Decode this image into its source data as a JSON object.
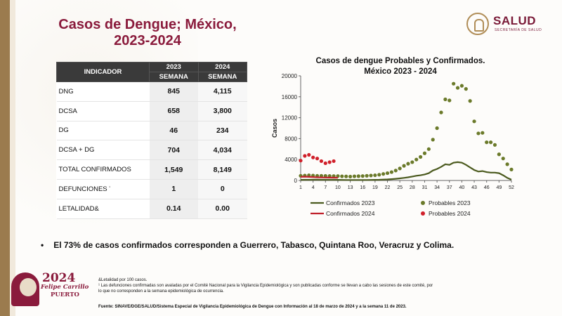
{
  "slide": {
    "title_line1": "Casos de Dengue; México,",
    "title_line2": "2023-2024",
    "logo_word": "SALUD",
    "logo_sub": "SECRETARÍA DE SALUD"
  },
  "table": {
    "header_indicator": "INDICADOR",
    "header_2023": "2023",
    "header_2024": "2024",
    "header_semana_a": "SEMANA",
    "header_semana_b": "SEMANA",
    "rows": [
      {
        "label": "DNG",
        "v2023": "845",
        "v2024": "4,115"
      },
      {
        "label": "DCSA",
        "v2023": "658",
        "v2024": "3,800"
      },
      {
        "label": "DG",
        "v2023": "46",
        "v2024": "234"
      },
      {
        "label": "DCSA + DG",
        "v2023": "704",
        "v2024": "4,034"
      },
      {
        "label": "TOTAL CONFIRMADOS",
        "v2023": "1,549",
        "v2024": "8,149"
      },
      {
        "label": "DEFUNCIONES",
        "note": "¹",
        "v2023": "1",
        "v2024": "0"
      },
      {
        "label": "LETALIDAD&",
        "v2023": "0.14",
        "v2024": "0.00"
      }
    ]
  },
  "chart_data": {
    "type": "line",
    "title_line1": "Casos de dengue Probables y Confirmados.",
    "title_line2": "México 2023 - 2024",
    "ylabel": "Casos",
    "ylim": [
      0,
      20000
    ],
    "yticks": [
      0,
      4000,
      8000,
      12000,
      16000,
      20000
    ],
    "xticks": [
      1,
      4,
      7,
      10,
      13,
      16,
      19,
      22,
      25,
      28,
      31,
      34,
      37,
      40,
      43,
      46,
      49,
      52
    ],
    "colors": {
      "confirmados_2023": "#4b5a1e",
      "probables_2023": "#6b7a2a",
      "confirmados_2024": "#c0202a",
      "probables_2024": "#d0202a"
    },
    "series": [
      {
        "name": "Confirmados 2023",
        "kind": "line",
        "x": [
          1,
          2,
          3,
          4,
          5,
          6,
          7,
          8,
          9,
          10,
          11,
          12,
          13,
          14,
          15,
          16,
          17,
          18,
          19,
          20,
          21,
          22,
          23,
          24,
          25,
          26,
          27,
          28,
          29,
          30,
          31,
          32,
          33,
          34,
          35,
          36,
          37,
          38,
          39,
          40,
          41,
          42,
          43,
          44,
          45,
          46,
          47,
          48,
          49,
          50,
          51,
          52
        ],
        "y": [
          120,
          130,
          140,
          150,
          145,
          140,
          135,
          130,
          128,
          120,
          110,
          100,
          95,
          90,
          90,
          95,
          100,
          110,
          120,
          140,
          170,
          200,
          250,
          320,
          400,
          500,
          600,
          750,
          900,
          1000,
          1150,
          1400,
          1900,
          2200,
          2600,
          3100,
          3000,
          3400,
          3500,
          3400,
          3000,
          2500,
          2000,
          1700,
          1800,
          1600,
          1500,
          1500,
          1400,
          1000,
          500,
          150
        ]
      },
      {
        "name": "Probables 2023",
        "kind": "markers",
        "x": [
          1,
          2,
          3,
          4,
          5,
          6,
          7,
          8,
          9,
          10,
          11,
          12,
          13,
          14,
          15,
          16,
          17,
          18,
          19,
          20,
          21,
          22,
          23,
          24,
          25,
          26,
          27,
          28,
          29,
          30,
          31,
          32,
          33,
          34,
          35,
          36,
          37,
          38,
          39,
          40,
          41,
          42,
          43,
          44,
          45,
          46,
          47,
          48,
          49,
          50,
          51,
          52
        ],
        "y": [
          900,
          950,
          1000,
          950,
          900,
          900,
          880,
          860,
          850,
          850,
          800,
          780,
          750,
          800,
          820,
          850,
          900,
          950,
          1000,
          1100,
          1250,
          1400,
          1600,
          1900,
          2300,
          2800,
          3200,
          3500,
          4000,
          4500,
          5200,
          6000,
          7800,
          10000,
          13000,
          15500,
          15300,
          18500,
          17700,
          18100,
          17500,
          15200,
          11300,
          9000,
          9100,
          7300,
          7300,
          6800,
          5000,
          4200,
          3100,
          2100
        ]
      },
      {
        "name": "Confirmados 2024",
        "kind": "line",
        "x": [
          1,
          2,
          3,
          4,
          5,
          6,
          7,
          8,
          9,
          10
        ],
        "y": [
          700,
          720,
          680,
          650,
          600,
          580,
          560,
          550,
          540,
          530
        ]
      },
      {
        "name": "Probables 2024",
        "kind": "markers",
        "x": [
          1,
          2,
          3,
          4,
          5,
          6,
          7,
          8,
          9
        ],
        "y": [
          3800,
          4700,
          4900,
          4400,
          4200,
          3700,
          3300,
          3500,
          3700
        ]
      }
    ],
    "legend": "bottom"
  },
  "bullet": "El 73% de casos confirmados corresponden a Guerrero, Tabasco, Quintana Roo, Veracruz y Colima.",
  "footnotes": {
    "line1": "&Letalidad por 100 casos.",
    "line2": "¹ Las defunciones confirmadas son avaladas por el Comité Nacional para la Vigilancia Epidemiológica y son publicadas conforme se llevan a cabo las sesiones de este comité, por",
    "line3": "lo que no corresponden a la semana epidemiológica de ocurrencia.",
    "source": "Fuente: SINAVE/DGE/SALUD/Sistema Especial de Vigilancia Epidemiológica de Dengue con Información al 18 de marzo de 2024 y a la semana 11 de 2023."
  },
  "badge": {
    "year": "2024",
    "name_line1": "Felipe Carrillo",
    "name_line2": "PUERTO"
  }
}
